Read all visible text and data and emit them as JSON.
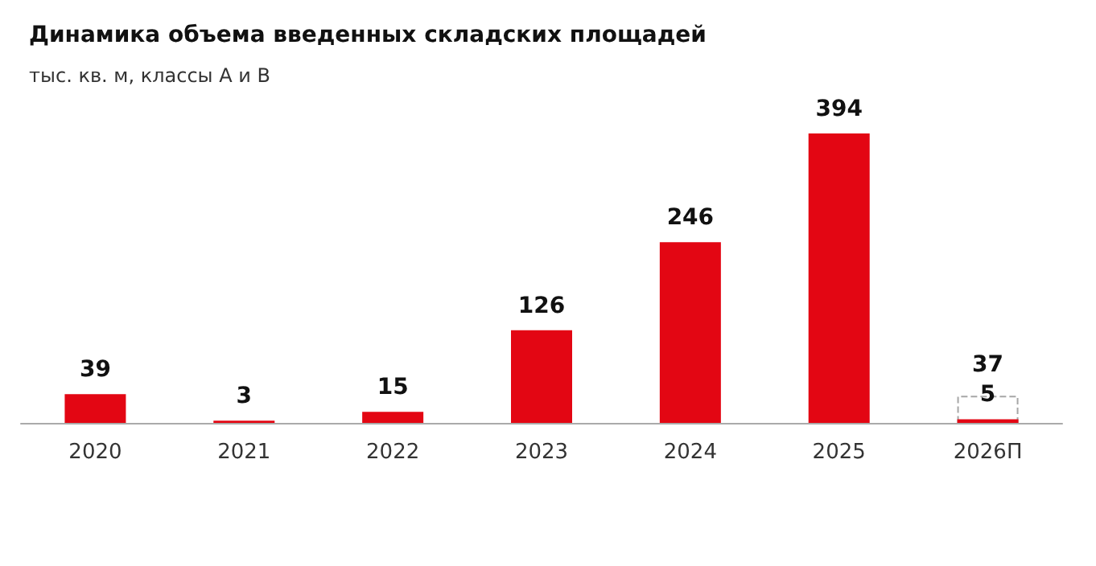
{
  "chart_data": {
    "type": "bar",
    "title": "Динамика объема введенных складских площадей",
    "subtitle": "тыс. кв. м, классы А и В",
    "categories": [
      "2020",
      "2021",
      "2022",
      "2023",
      "2024",
      "2025",
      "2026П"
    ],
    "series": [
      {
        "color": "#e30613",
        "values": [
          39,
          3,
          15,
          126,
          246,
          394,
          5
        ]
      },
      {
        "color": "#a6a6a6",
        "line_style": "dashed",
        "values": [
          null,
          null,
          null,
          null,
          null,
          null,
          37
        ]
      }
    ],
    "data_labels": true
  }
}
